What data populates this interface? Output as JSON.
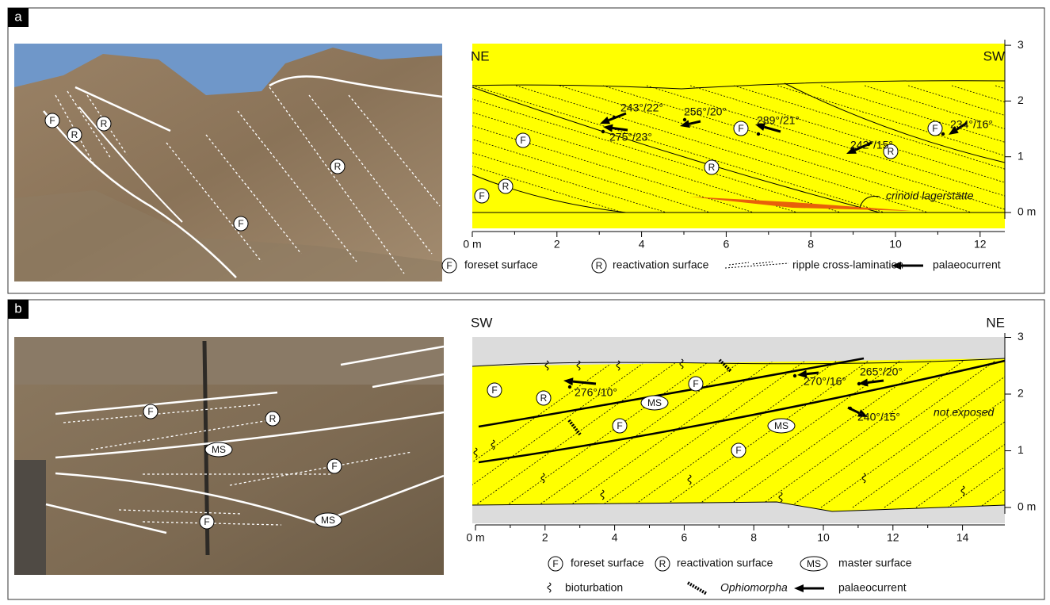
{
  "panel_a": {
    "label": "a",
    "photo": {
      "markers": [
        "F",
        "R",
        "R",
        "R",
        "F"
      ]
    },
    "sketch": {
      "left_direction": "NE",
      "right_direction": "SW",
      "yticks": [
        {
          "value": 0,
          "label": "0 m"
        },
        1,
        2,
        3
      ],
      "xticks": [
        {
          "value": 0,
          "label": "0 m"
        },
        2,
        4,
        6,
        8,
        10,
        12
      ],
      "markers": [
        "F",
        "R",
        "F",
        "R",
        "F",
        "R",
        "F"
      ],
      "annotations": [
        "243°/22°",
        "275°/23°",
        "256°/20°",
        "289°/21°",
        "242°/15°",
        "234°/16°",
        "crinoid lagerstätte"
      ]
    },
    "legend": [
      {
        "symbol": "F",
        "text": "foreset surface"
      },
      {
        "symbol": "R",
        "text": "reactivation surface"
      },
      {
        "text": "ripple cross-lamination"
      },
      {
        "text": "palaeocurrent"
      }
    ]
  },
  "panel_b": {
    "label": "b",
    "photo": {
      "markers": [
        "R",
        "F",
        "MS",
        "F",
        "MS",
        "F"
      ]
    },
    "sketch": {
      "left_direction": "SW",
      "right_direction": "NE",
      "yticks": [
        {
          "value": 0,
          "label": "0 m"
        },
        1,
        2,
        3
      ],
      "xticks": [
        {
          "value": 0,
          "label": "0 m"
        },
        2,
        4,
        6,
        8,
        10,
        12,
        14
      ],
      "markers": [
        "F",
        "R",
        "MS",
        "F",
        "F",
        "MS",
        "F"
      ],
      "annotations": [
        "276°/10°",
        "270°/16°",
        "265°/20°",
        "240°/15°",
        "not exposed"
      ]
    },
    "legend": [
      {
        "symbol": "F",
        "text": "foreset surface"
      },
      {
        "symbol": "R",
        "text": "reactivation surface"
      },
      {
        "symbol": "MS",
        "text": "master surface"
      },
      {
        "text": "bioturbation"
      },
      {
        "text": "Ophiomorpha"
      },
      {
        "text": "palaeocurrent"
      }
    ]
  }
}
